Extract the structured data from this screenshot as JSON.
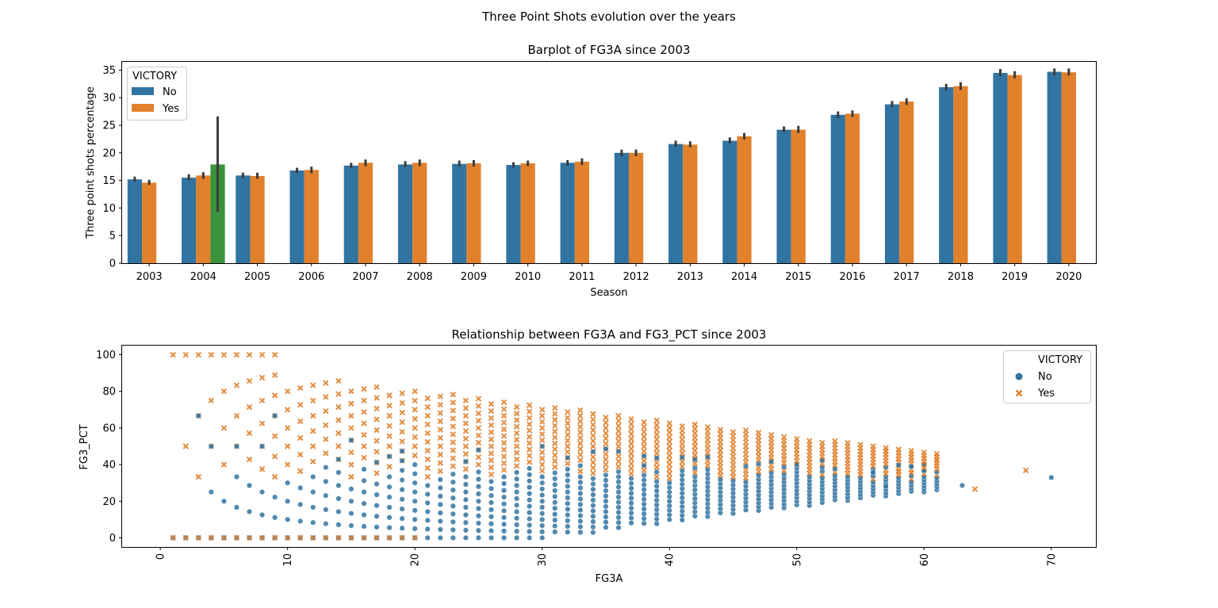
{
  "figure": {
    "suptitle": "Three Point Shots evolution over the years"
  },
  "colors": {
    "no": "#3274a1",
    "yes": "#e1812c",
    "extra": "#3a923a",
    "errorbar": "#3c3c3c"
  },
  "chart_data": [
    {
      "type": "bar",
      "title": "Barplot of FG3A since 2003",
      "xlabel": "Season",
      "ylabel": "Three point shots percentage",
      "ylim": [
        0,
        36.5
      ],
      "yticks": [
        0,
        5,
        10,
        15,
        20,
        25,
        30,
        35
      ],
      "categories": [
        "2003",
        "2004",
        "2005",
        "2006",
        "2007",
        "2008",
        "2009",
        "2010",
        "2011",
        "2012",
        "2013",
        "2014",
        "2015",
        "2016",
        "2017",
        "2018",
        "2019",
        "2020"
      ],
      "legend": {
        "title": "VICTORY",
        "placement": "upper-left",
        "entries": [
          "No",
          "Yes"
        ]
      },
      "series": [
        {
          "name": "No",
          "values": [
            15.2,
            15.5,
            15.9,
            16.8,
            17.7,
            17.9,
            18.0,
            17.8,
            18.2,
            20.0,
            21.6,
            22.2,
            24.2,
            26.9,
            28.8,
            31.9,
            34.5,
            34.7
          ],
          "err_low": [
            14.8,
            15.0,
            15.4,
            16.3,
            17.2,
            17.4,
            17.5,
            17.3,
            17.7,
            19.4,
            21.1,
            21.7,
            23.7,
            26.3,
            28.2,
            31.3,
            33.9,
            34.1
          ],
          "err_high": [
            15.7,
            16.1,
            16.4,
            17.3,
            18.2,
            18.5,
            18.6,
            18.3,
            18.7,
            20.6,
            22.2,
            22.8,
            24.8,
            27.5,
            29.4,
            32.5,
            35.2,
            35.3
          ]
        },
        {
          "name": "Yes",
          "values": [
            14.6,
            15.9,
            15.8,
            16.9,
            18.2,
            18.2,
            18.1,
            18.1,
            18.4,
            20.0,
            21.5,
            23.0,
            24.2,
            27.1,
            29.3,
            32.1,
            34.1,
            34.6
          ],
          "err_low": [
            14.2,
            15.3,
            15.3,
            16.3,
            17.6,
            17.6,
            17.5,
            17.6,
            17.8,
            19.4,
            21.0,
            22.4,
            23.6,
            26.5,
            28.7,
            31.4,
            33.5,
            34.0
          ],
          "err_high": [
            15.1,
            16.5,
            16.4,
            17.5,
            18.8,
            18.8,
            18.7,
            18.6,
            19.0,
            20.6,
            22.1,
            23.6,
            24.9,
            27.7,
            29.9,
            32.8,
            34.8,
            35.3
          ]
        },
        {
          "values": [
            null,
            17.9,
            null,
            null,
            null,
            null,
            null,
            null,
            null,
            null,
            null,
            null,
            null,
            null,
            null,
            null,
            null,
            null
          ],
          "err_low": [
            null,
            9.3,
            null,
            null,
            null,
            null,
            null,
            null,
            null,
            null,
            null,
            null,
            null,
            null,
            null,
            null,
            null,
            null
          ],
          "err_high": [
            null,
            26.6,
            null,
            null,
            null,
            null,
            null,
            null,
            null,
            null,
            null,
            null,
            null,
            null,
            null,
            null,
            null,
            null
          ]
        }
      ]
    },
    {
      "type": "scatter",
      "title": "Relationship between FG3A and FG3_PCT since 2003",
      "xlabel": "FG3A",
      "ylabel": "FG3_PCT",
      "xlim": [
        -3,
        73.5
      ],
      "ylim": [
        -5,
        105
      ],
      "xticks": [
        0,
        10,
        20,
        30,
        40,
        50,
        60,
        70
      ],
      "yticks": [
        0,
        20,
        40,
        60,
        80,
        100
      ],
      "legend": {
        "title": "VICTORY",
        "placement": "upper-right",
        "entries": [
          "No",
          "Yes"
        ]
      },
      "series": [
        {
          "name": "No",
          "marker": "circle",
          "points": "generated-grid",
          "fg3a_range": [
            1,
            61
          ],
          "outliers": [
            [
              63,
              28.6
            ],
            [
              70,
              32.9
            ],
            [
              58,
              39.7
            ],
            [
              59,
              39.0
            ],
            [
              60,
              36.7
            ],
            [
              56,
              35.7
            ],
            [
              57,
              28.1
            ]
          ]
        },
        {
          "name": "Yes",
          "marker": "x",
          "points": "generated-grid",
          "fg3a_range": [
            1,
            61
          ],
          "outliers": [
            [
              64,
              26.6
            ],
            [
              68,
              36.8
            ],
            [
              57,
              47.4
            ],
            [
              58,
              36.2
            ],
            [
              60,
              38.3
            ],
            [
              61,
              42.6
            ]
          ]
        }
      ]
    }
  ]
}
